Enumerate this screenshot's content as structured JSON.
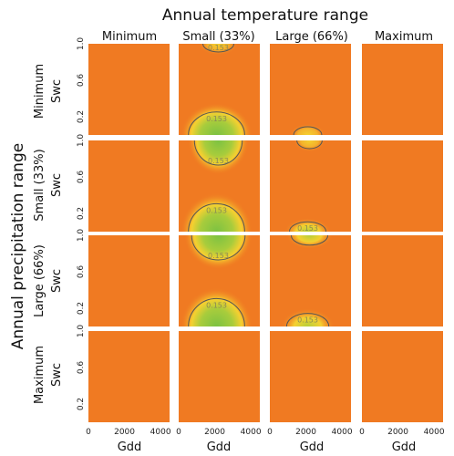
{
  "chart_data": {
    "type": "heatmap",
    "title": "Annual temperature range",
    "row_axis_title": "Annual precipitation range",
    "columns": [
      "Minimum",
      "Small (33%)",
      "Large (66%)",
      "Maximum"
    ],
    "rows": [
      "Minimum",
      "Small (33%)",
      "Large (66%)",
      "Maximum"
    ],
    "xlabel": "Gdd",
    "ylabel": "Swc",
    "xlim": [
      0,
      4500
    ],
    "ylim": [
      0,
      1.0
    ],
    "xticks": [
      "0",
      "2000",
      "4000"
    ],
    "yticks": [
      "1.0",
      "0.6",
      "0.2"
    ],
    "contour_label": "0.153",
    "colors": {
      "background": "#f07a22",
      "low": "#f07a22",
      "mid": "#f5d030",
      "high": "#7cc242",
      "contour": "#555555"
    },
    "panels": [
      [
        {
          "blobs": []
        },
        {
          "blobs": [
            {
              "gdd": 2200,
              "swc": 1.0,
              "gdd_radius": 1100,
              "swc_radius": 0.1,
              "peak": 0.45,
              "label": "0.153"
            },
            {
              "gdd": 2100,
              "swc": 0.0,
              "gdd_radius": 2000,
              "swc_radius": 0.28,
              "peak": 1.0,
              "label": "0.153"
            }
          ]
        },
        {
          "blobs": [
            {
              "gdd": 2100,
              "swc": 0.0,
              "gdd_radius": 1000,
              "swc_radius": 0.1,
              "peak": 0.5,
              "label": ""
            }
          ]
        },
        {
          "blobs": []
        }
      ],
      [
        {
          "blobs": []
        },
        {
          "blobs": [
            {
              "gdd": 2200,
              "swc": 1.0,
              "gdd_radius": 1700,
              "swc_radius": 0.3,
              "peak": 1.0,
              "label": "0.153"
            },
            {
              "gdd": 2100,
              "swc": 0.0,
              "gdd_radius": 2000,
              "swc_radius": 0.34,
              "peak": 1.0,
              "label": "0.153"
            }
          ]
        },
        {
          "blobs": [
            {
              "gdd": 2200,
              "swc": 1.0,
              "gdd_radius": 900,
              "swc_radius": 0.1,
              "peak": 0.45,
              "label": ""
            },
            {
              "gdd": 2100,
              "swc": 0.0,
              "gdd_radius": 1300,
              "swc_radius": 0.12,
              "peak": 0.6,
              "label": "0.153"
            }
          ]
        },
        {
          "blobs": []
        }
      ],
      [
        {
          "blobs": []
        },
        {
          "blobs": [
            {
              "gdd": 2200,
              "swc": 1.0,
              "gdd_radius": 1900,
              "swc_radius": 0.3,
              "peak": 0.9,
              "label": "0.153"
            },
            {
              "gdd": 2100,
              "swc": 0.0,
              "gdd_radius": 2000,
              "swc_radius": 0.34,
              "peak": 1.0,
              "label": "0.153"
            }
          ]
        },
        {
          "blobs": [
            {
              "gdd": 2200,
              "swc": 1.0,
              "gdd_radius": 1300,
              "swc_radius": 0.12,
              "peak": 0.6,
              "label": ""
            },
            {
              "gdd": 2100,
              "swc": 0.0,
              "gdd_radius": 1500,
              "swc_radius": 0.16,
              "peak": 0.7,
              "label": "0.153"
            }
          ]
        },
        {
          "blobs": []
        }
      ],
      [
        {
          "blobs": []
        },
        {
          "blobs": []
        },
        {
          "blobs": []
        },
        {
          "blobs": []
        }
      ]
    ]
  }
}
